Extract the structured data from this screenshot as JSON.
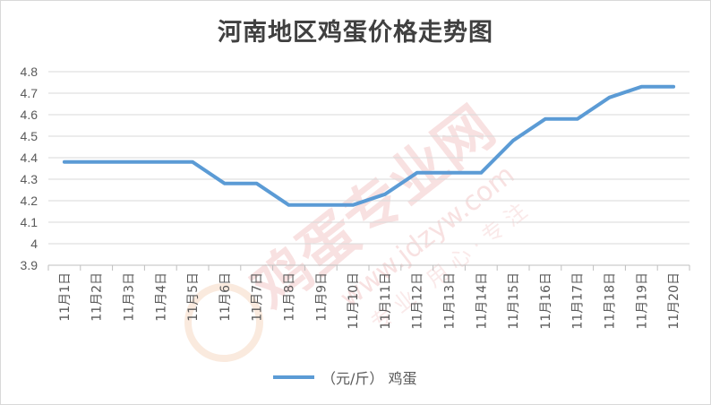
{
  "title": "河南地区鸡蛋价格走势图",
  "watermark": {
    "text1": "鸡蛋专业网",
    "text2": "www.jdzyw.com",
    "text3": "专 业 · 用 心 · 专 注"
  },
  "colors": {
    "line": "#5b9bd5",
    "grid": "#d9d9d9",
    "axis": "#bfbfbf",
    "text": "#595959",
    "watermark": "#f3c9c9"
  },
  "chart_data": {
    "type": "line",
    "title": "河南地区鸡蛋价格走势图",
    "categories": [
      "11月1日",
      "11月2日",
      "11月3日",
      "11月4日",
      "11月5日",
      "11月6日",
      "11月7日",
      "11月8日",
      "11月9日",
      "11月10日",
      "11月11日",
      "11月12日",
      "11月13日",
      "11月14日",
      "11月15日",
      "11月16日",
      "11月17日",
      "11月18日",
      "11月19日",
      "11月20日"
    ],
    "series": [
      {
        "name": "（元/斤） 鸡蛋",
        "values": [
          4.38,
          4.38,
          4.38,
          4.38,
          4.38,
          4.28,
          4.28,
          4.18,
          4.18,
          4.18,
          4.23,
          4.33,
          4.33,
          4.33,
          4.48,
          4.58,
          4.58,
          4.68,
          4.73,
          4.73
        ]
      }
    ],
    "yticks": [
      "3.9",
      "4",
      "4.1",
      "4.2",
      "4.3",
      "4.4",
      "4.5",
      "4.6",
      "4.7",
      "4.8"
    ],
    "ylim": [
      3.9,
      4.8
    ],
    "grid": true,
    "legend_position": "bottom",
    "xlabel": "",
    "ylabel": ""
  }
}
